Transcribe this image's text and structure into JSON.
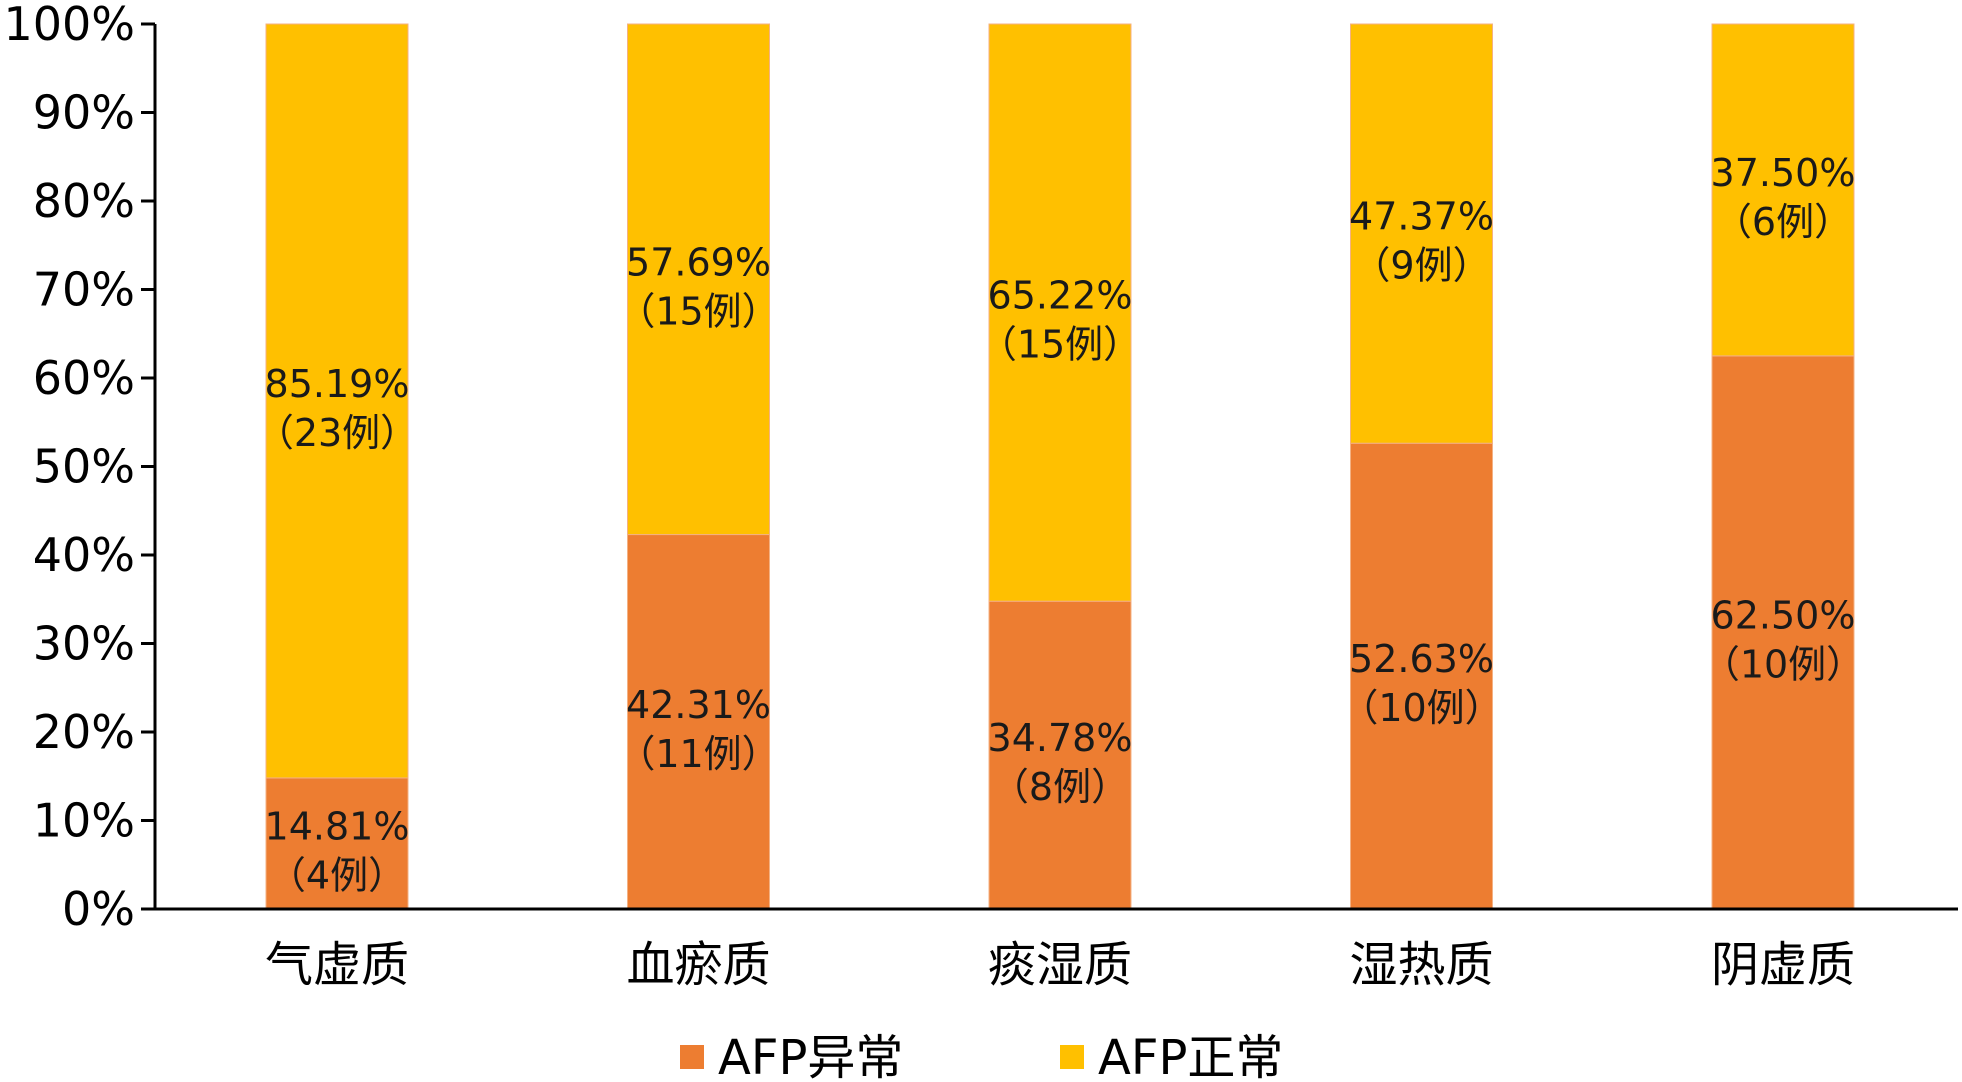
{
  "chart_data": {
    "type": "bar",
    "stacked": true,
    "percent": true,
    "categories": [
      "气虚质",
      "血瘀质",
      "痰湿质",
      "湿热质",
      "阴虚质"
    ],
    "series": [
      {
        "name": "AFP异常",
        "color": "#ED7D31",
        "values": [
          14.81,
          42.31,
          34.78,
          52.63,
          62.5
        ],
        "labels": [
          "14.81%",
          "42.31%",
          "34.78%",
          "52.63%",
          "62.50%"
        ],
        "counts": [
          "（4例）",
          "（11例）",
          "（8例）",
          "（10例）",
          "（10例）"
        ]
      },
      {
        "name": "AFP正常",
        "color": "#FFC000",
        "values": [
          85.19,
          57.69,
          65.22,
          47.37,
          37.5
        ],
        "labels": [
          "85.19%",
          "57.69%",
          "65.22%",
          "47.37%",
          "37.50%"
        ],
        "counts": [
          "（23例）",
          "（15例）",
          "（15例）",
          "（9例）",
          "（6例）"
        ]
      }
    ],
    "yticks": [
      "0%",
      "10%",
      "20%",
      "30%",
      "40%",
      "50%",
      "60%",
      "70%",
      "80%",
      "90%",
      "100%"
    ],
    "ylim": [
      0,
      100
    ],
    "grid": false,
    "legend_position": "bottom"
  }
}
